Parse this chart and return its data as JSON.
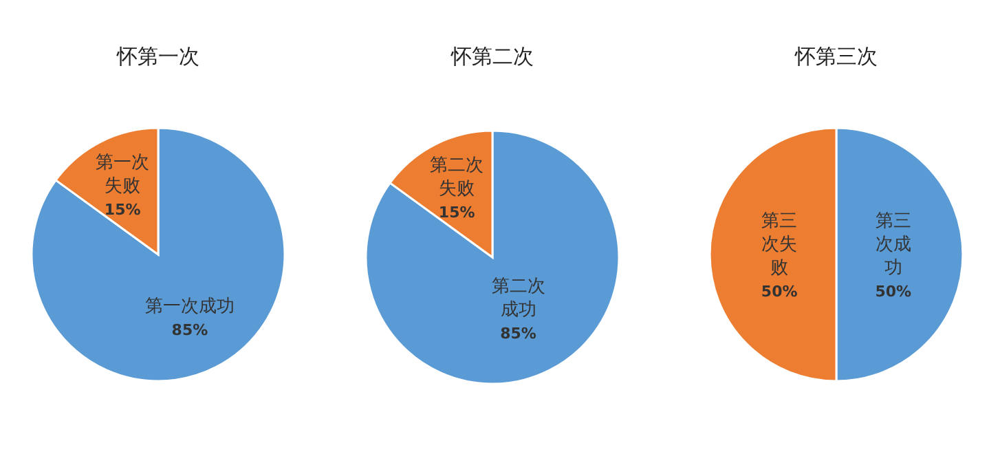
{
  "chart_data": [
    {
      "type": "pie",
      "title": "怀第一次",
      "categories": [
        "第一次成功",
        "第一次失败"
      ],
      "values": [
        85,
        15
      ],
      "colors": [
        "#5b9bd5",
        "#ed7d31"
      ],
      "value_labels": [
        "85%",
        "15%"
      ]
    },
    {
      "type": "pie",
      "title": "怀第二次",
      "categories": [
        "第二次成功",
        "第二次失败"
      ],
      "values": [
        85,
        15
      ],
      "colors": [
        "#5b9bd5",
        "#ed7d31"
      ],
      "value_labels": [
        "85%",
        "15%"
      ]
    },
    {
      "type": "pie",
      "title": "怀第三次",
      "categories": [
        "第三次成功",
        "第三次失败"
      ],
      "values": [
        50,
        50
      ],
      "colors": [
        "#5b9bd5",
        "#ed7d31"
      ],
      "value_labels": [
        "50%",
        "50%"
      ]
    }
  ]
}
